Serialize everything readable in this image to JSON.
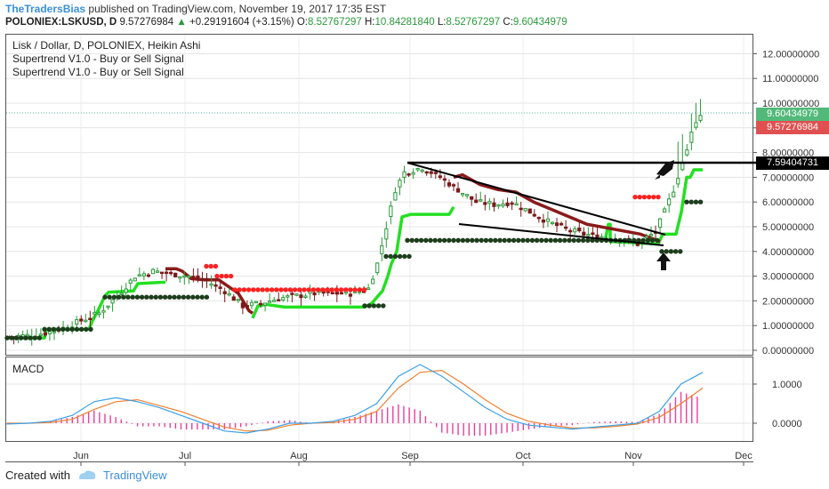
{
  "header": {
    "publisher": "TheTradersBias",
    "published_text": "published on TradingView.com, November 19, 2017 17:35 EST",
    "symbol": "POLONIEX:LSKUSD, D",
    "last": "9.57276984",
    "arrow": "▲",
    "change": "+0.29191604 (+3.15%)",
    "O_label": "O:",
    "O": "8.52767297",
    "H_label": "H:",
    "H": "10.84281840",
    "L_label": "L:",
    "L": "8.52767297",
    "C_label": "C:",
    "C": "9.60434979"
  },
  "legend": {
    "title": "Lisk / Dollar, D, POLONIEX, Heikin Ashi",
    "indicator1": "Supertrend V1.0 - Buy or Sell Signal",
    "indicator2": "Supertrend V1.0 - Buy or Sell Signal"
  },
  "macd_label": "MACD",
  "footer": {
    "created_with": "Created with",
    "brand": "TradingView"
  },
  "price_labels": {
    "close": "9.60434979",
    "last": "9.57276984",
    "level": "7.59404731"
  },
  "colors": {
    "up": "#2a9a3a",
    "down": "#7a1a1a",
    "supertrend_up": "#22e022",
    "supertrend_down": "#8b1a1a",
    "signal_sell": "#ff2020",
    "signal_buy": "#1d3d1d",
    "macd_line": "#3aa0e8",
    "signal_line": "#f08030",
    "histogram": "#e8409a"
  },
  "chart_data": [
    {
      "type": "candlestick",
      "title": "Lisk / Dollar, D, POLONIEX, Heikin Ashi",
      "x_ticks": [
        "Jun",
        "Jul",
        "Aug",
        "Sep",
        "Oct",
        "Nov",
        "Dec"
      ],
      "y_ticks": [
        "12.00000000",
        "11.00000000",
        "10.00000000",
        "9.00000000",
        "8.00000000",
        "7.00000000",
        "6.00000000",
        "5.00000000",
        "4.00000000",
        "3.00000000",
        "2.00000000",
        "1.00000000",
        "0.00000000"
      ],
      "ylim": [
        0,
        12.5
      ],
      "close_approx": [
        [
          0,
          0.55
        ],
        [
          4,
          0.6
        ],
        [
          8,
          0.7
        ],
        [
          12,
          0.9
        ],
        [
          16,
          1.2
        ],
        [
          20,
          1.5
        ],
        [
          24,
          2.2
        ],
        [
          28,
          3.0
        ],
        [
          32,
          3.2
        ],
        [
          36,
          3.1
        ],
        [
          40,
          3.0
        ],
        [
          44,
          2.8
        ],
        [
          48,
          2.4
        ],
        [
          52,
          1.8
        ],
        [
          56,
          1.9
        ],
        [
          60,
          2.1
        ],
        [
          64,
          2.2
        ],
        [
          68,
          2.3
        ],
        [
          72,
          2.3
        ],
        [
          76,
          2.3
        ],
        [
          80,
          2.5
        ],
        [
          82,
          3.5
        ],
        [
          84,
          5.0
        ],
        [
          86,
          6.5
        ],
        [
          88,
          7.2
        ],
        [
          92,
          7.4
        ],
        [
          96,
          7.0
        ],
        [
          100,
          6.5
        ],
        [
          104,
          6.0
        ],
        [
          108,
          5.9
        ],
        [
          112,
          6.0
        ],
        [
          116,
          5.6
        ],
        [
          120,
          5.2
        ],
        [
          124,
          4.9
        ],
        [
          128,
          4.7
        ],
        [
          132,
          4.6
        ],
        [
          136,
          4.5
        ],
        [
          140,
          4.3
        ],
        [
          144,
          4.8
        ],
        [
          146,
          5.6
        ],
        [
          148,
          6.5
        ],
        [
          150,
          7.6
        ],
        [
          152,
          8.8
        ],
        [
          154,
          9.6
        ]
      ],
      "horizontal_level": 7.59404731,
      "annotations": [
        "descending wedge trendlines",
        "rocket icon",
        "up arrow"
      ]
    },
    {
      "type": "line",
      "title": "MACD",
      "y_ticks": [
        "1.0000",
        "0.0000"
      ],
      "series": [
        {
          "values": [
            -0.02,
            0.0,
            0.05,
            0.2,
            0.55,
            0.65,
            0.55,
            0.4,
            0.2,
            0.0,
            -0.2,
            -0.25,
            -0.15,
            0.0,
            0.0,
            0.05,
            0.2,
            0.5,
            1.2,
            1.5,
            1.2,
            0.8,
            0.4,
            0.1,
            -0.05,
            -0.1,
            -0.15,
            -0.1,
            -0.05,
            0.0,
            0.3,
            1.0,
            1.3
          ]
        },
        {
          "values": [
            0.0,
            0.0,
            0.02,
            0.1,
            0.35,
            0.55,
            0.6,
            0.45,
            0.3,
            0.1,
            -0.1,
            -0.2,
            -0.18,
            -0.05,
            0.0,
            0.02,
            0.1,
            0.3,
            0.9,
            1.3,
            1.35,
            1.0,
            0.6,
            0.25,
            0.05,
            -0.05,
            -0.12,
            -0.12,
            -0.08,
            -0.02,
            0.15,
            0.5,
            0.9
          ]
        }
      ],
      "ylim": [
        -0.6,
        1.8
      ]
    }
  ]
}
